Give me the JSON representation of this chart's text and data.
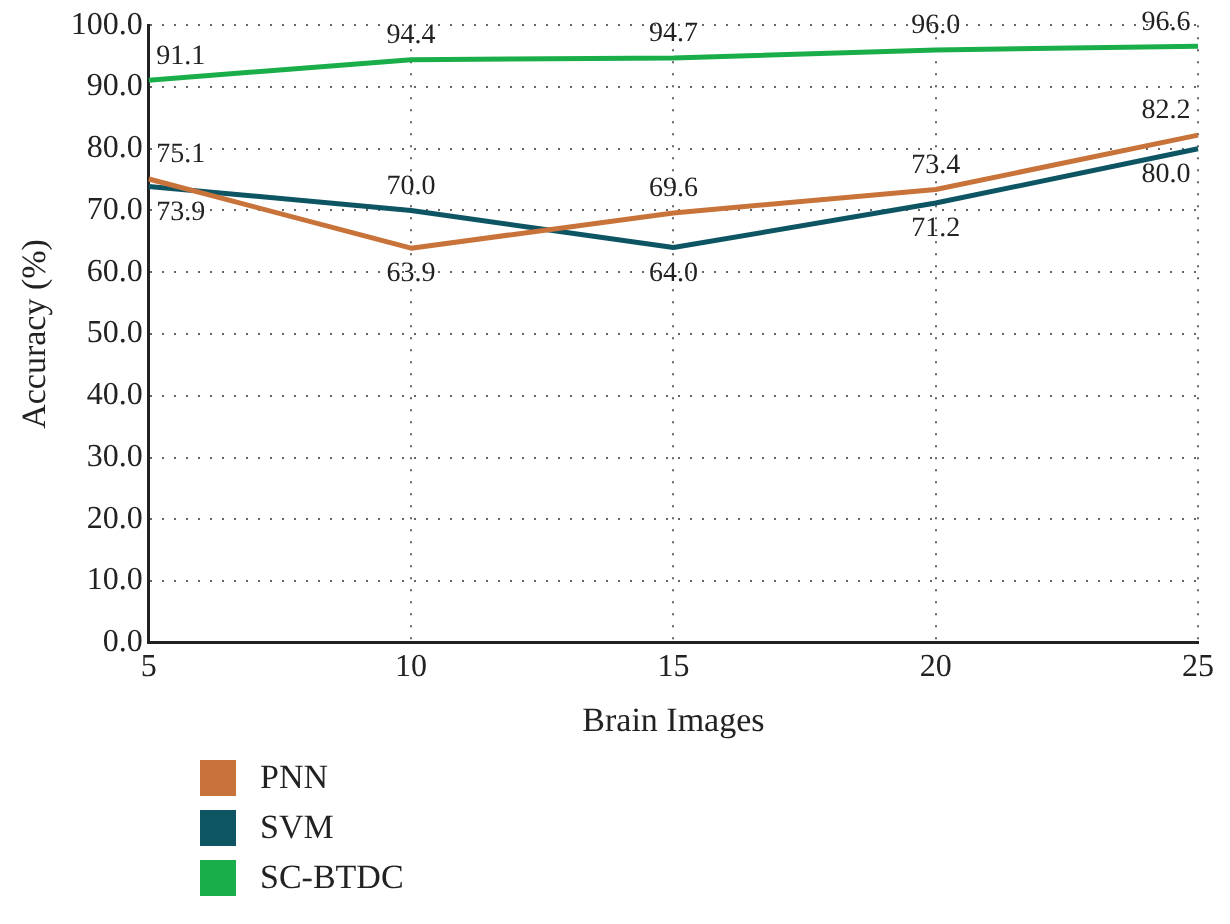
{
  "chart_data": {
    "type": "line",
    "xlabel": "Brain Images",
    "ylabel": "Accuracy (%)",
    "categories": [
      "5",
      "10",
      "15",
      "20",
      "25"
    ],
    "ylim": [
      0,
      100
    ],
    "yticks": [
      {
        "value": 0,
        "label": "0.0"
      },
      {
        "value": 10,
        "label": "10.0"
      },
      {
        "value": 20,
        "label": "20.0"
      },
      {
        "value": 30,
        "label": "30.0"
      },
      {
        "value": 40,
        "label": "40.0"
      },
      {
        "value": 50,
        "label": "50.0"
      },
      {
        "value": 60,
        "label": "60.0"
      },
      {
        "value": 70,
        "label": "70.0"
      },
      {
        "value": 80,
        "label": "80.0"
      },
      {
        "value": 90,
        "label": "90.0"
      },
      {
        "value": 100,
        "label": "100.0"
      }
    ],
    "grid": true,
    "legend": "bottom left",
    "marker": "none",
    "line_style": "solid",
    "series": [
      {
        "name": "PNN",
        "color": "#c8733a",
        "values": [
          75.1,
          63.9,
          69.6,
          73.4,
          82.2
        ],
        "value_labels": [
          "75.1",
          "63.9",
          "69.6",
          "73.4",
          "82.2"
        ]
      },
      {
        "name": "SVM",
        "color": "#0e5563",
        "values": [
          73.9,
          70.0,
          64.0,
          71.2,
          80.0
        ],
        "value_labels": [
          "73.9",
          "70.0",
          "64.0",
          "71.2",
          "80.0"
        ]
      },
      {
        "name": "SC-BTDC",
        "color": "#1aae4a",
        "values": [
          91.1,
          94.4,
          94.7,
          96.0,
          96.6
        ],
        "value_labels": [
          "91.1",
          "94.4",
          "94.7",
          "96.0",
          "96.6"
        ]
      }
    ]
  }
}
